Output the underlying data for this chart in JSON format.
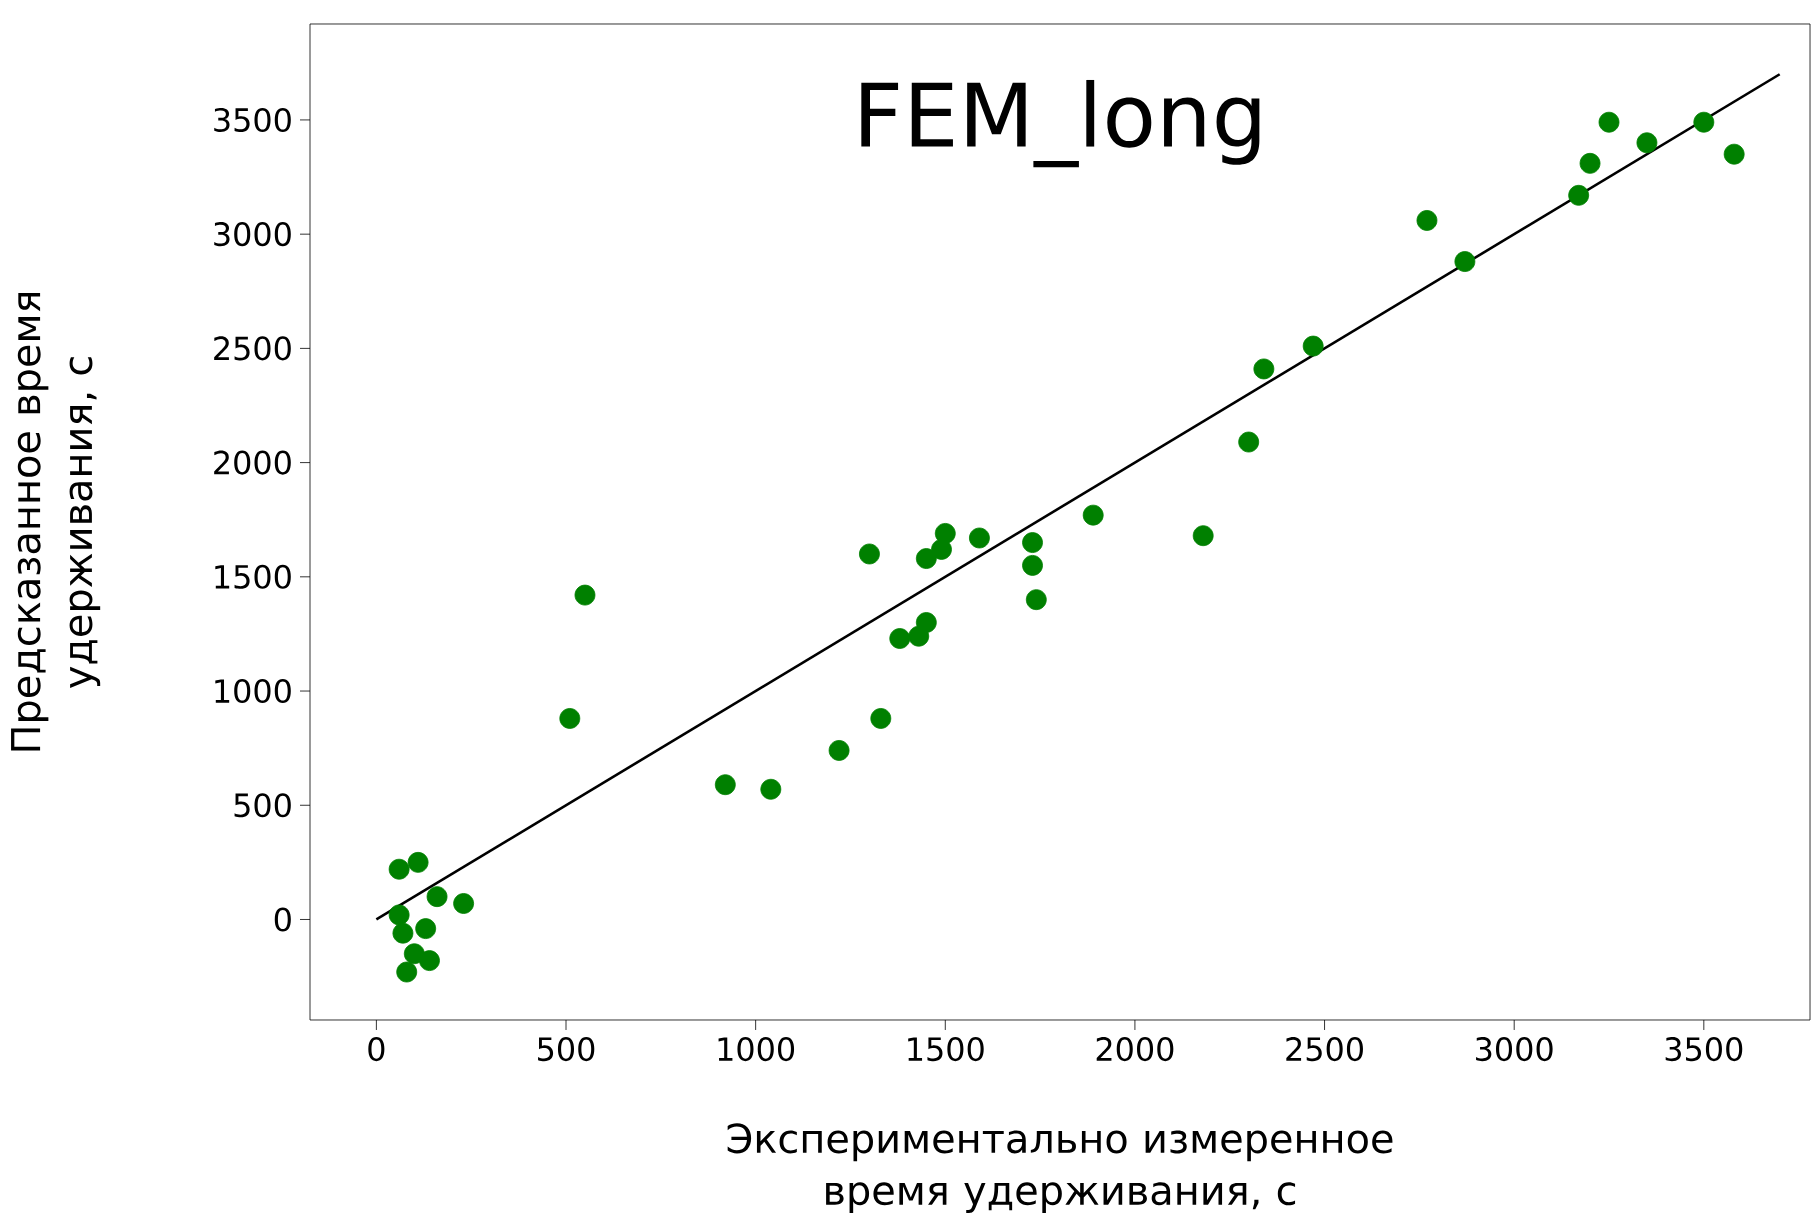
{
  "chart_data": {
    "type": "scatter",
    "title": "FEM_long",
    "xlabel": "Экспериментально измеренное время удерживания, с",
    "ylabel": "Предсказанное время удерживания, с",
    "xlim": [
      -175,
      3780
    ],
    "ylim": [
      -440,
      3920
    ],
    "xticks": [
      0,
      500,
      1000,
      1500,
      2000,
      2500,
      3000,
      3500
    ],
    "yticks": [
      0,
      500,
      1000,
      1500,
      2000,
      2500,
      3000,
      3500
    ],
    "grid": false,
    "series": [
      {
        "marker": "circle",
        "color": "#008000",
        "x": [
          60,
          110,
          230,
          160,
          60,
          130,
          70,
          140,
          80,
          100,
          510,
          550,
          920,
          1040,
          1220,
          1300,
          1330,
          1380,
          1430,
          1450,
          1450,
          1490,
          1500,
          1590,
          1730,
          1730,
          1740,
          1890,
          2180,
          2300,
          2340,
          2470,
          2770,
          2870,
          3170,
          3200,
          3250,
          3350,
          3500,
          3580
        ],
        "values": [
          220,
          250,
          70,
          100,
          20,
          -40,
          -60,
          -180,
          -230,
          -150,
          880,
          1420,
          590,
          570,
          740,
          1600,
          880,
          1230,
          1240,
          1300,
          1580,
          1620,
          1690,
          1670,
          1650,
          1550,
          1400,
          1770,
          1680,
          2090,
          2410,
          2510,
          3060,
          2880,
          3170,
          3310,
          3490,
          3400,
          3490,
          3350
        ]
      },
      {
        "type": "line",
        "marker": "none",
        "color": "#000000",
        "x": [
          0,
          3700
        ],
        "values": [
          0,
          3700
        ]
      }
    ]
  }
}
